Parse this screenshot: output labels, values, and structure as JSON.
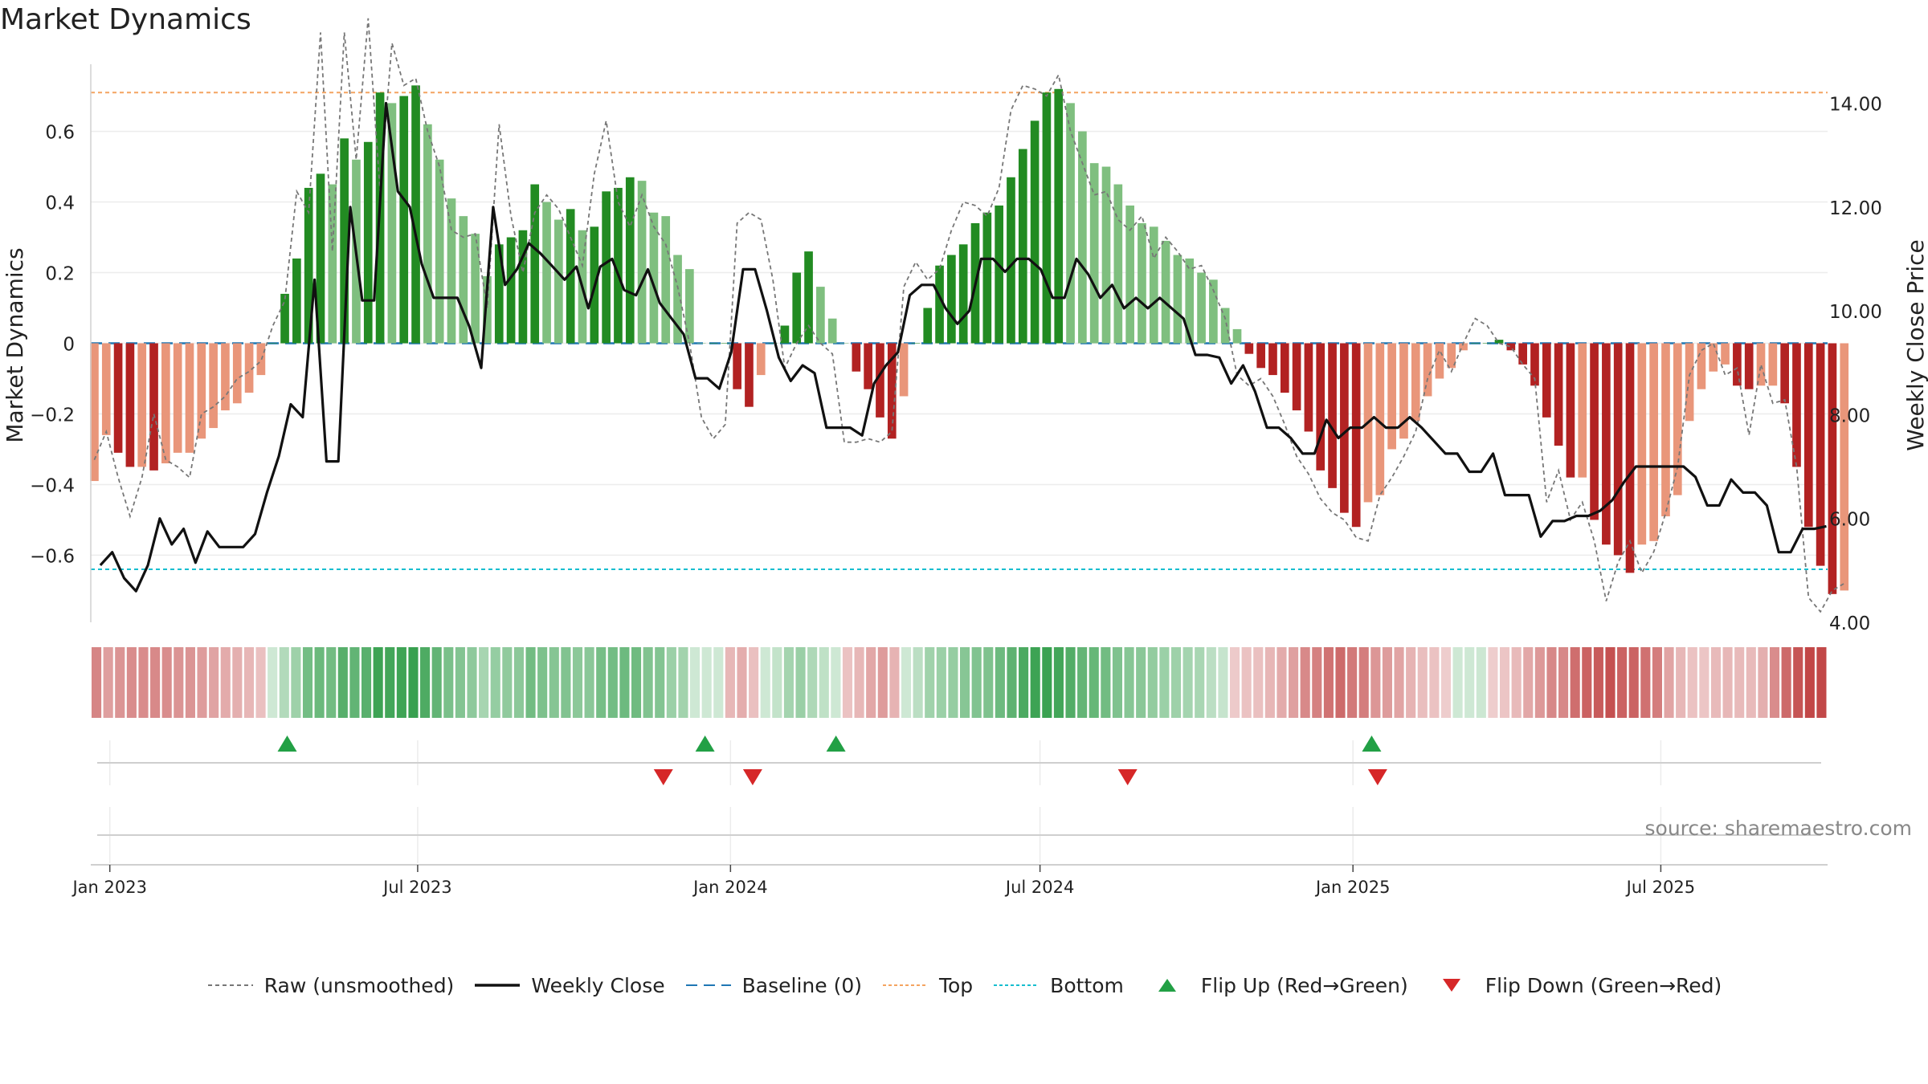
{
  "title": "Market Dynamics",
  "source": "source: sharemaestro.com",
  "colors": {
    "green_dark": "#228b22",
    "green_light": "#7fbf7f",
    "red_dark": "#b22222",
    "red_light": "#e9967a",
    "close_line": "#111111",
    "raw_line": "#777777",
    "baseline": "#1f77b4",
    "top": "#f4a460",
    "bottom": "#17becf",
    "flip_up": "#22a045",
    "flip_down": "#d62728"
  },
  "legend": [
    {
      "label": "Raw (unsmoothed)",
      "kind": "line",
      "color": "#777777",
      "dash": "5,4"
    },
    {
      "label": "Weekly Close",
      "kind": "line",
      "color": "#111111",
      "dash": ""
    },
    {
      "label": "Baseline (0)",
      "kind": "line",
      "color": "#1f77b4",
      "dash": "14,8"
    },
    {
      "label": "Top",
      "kind": "line",
      "color": "#f4a460",
      "dash": "4,3"
    },
    {
      "label": "Bottom",
      "kind": "line",
      "color": "#17becf",
      "dash": "4,3"
    },
    {
      "label": "Flip Up (Red→Green)",
      "kind": "up",
      "color": "#22a045",
      "dash": ""
    },
    {
      "label": "Flip Down (Green→Red)",
      "kind": "down",
      "color": "#d62728",
      "dash": ""
    }
  ],
  "chart_data": {
    "type": "bar",
    "ylabel_left": "Market Dynamics",
    "ylabel_right": "Weekly Close Price",
    "ylim_left": [
      -0.79,
      0.79
    ],
    "ylim_right": [
      4.0,
      14.75
    ],
    "yticks_left": [
      -0.6,
      -0.4,
      -0.2,
      0,
      0.2,
      0.4,
      0.6
    ],
    "ytick_labels_left": [
      "−0.6",
      "−0.4",
      "−0.2",
      "0",
      "0.2",
      "0.4",
      "0.6"
    ],
    "yticks_right": [
      4.0,
      6.0,
      8.0,
      10.0,
      12.0,
      14.0
    ],
    "ytick_labels_right": [
      "4.00",
      "6.00",
      "8.00",
      "10.00",
      "12.00",
      "14.00"
    ],
    "x_start_week": -1.3,
    "x_range_weeks": [
      -1.6,
      144.3
    ],
    "x_ticks": [
      {
        "label": "Jan 2023",
        "week": 0
      },
      {
        "label": "Jul 2023",
        "week": 25.86
      },
      {
        "label": "Jan 2024",
        "week": 52.14
      },
      {
        "label": "Jul 2024",
        "week": 78.14
      },
      {
        "label": "Jan 2025",
        "week": 104.43
      },
      {
        "label": "Jul 2025",
        "week": 130.29
      }
    ],
    "grid": true,
    "top_level": 0.71,
    "bottom_level": -0.64,
    "baseline": 0,
    "legend_position": "bottom",
    "series": [
      {
        "name": "Market Dynamics",
        "values": [
          -0.39,
          -0.26,
          -0.31,
          -0.35,
          -0.35,
          -0.36,
          -0.34,
          -0.31,
          -0.31,
          -0.27,
          -0.24,
          -0.19,
          -0.17,
          -0.14,
          -0.09,
          0.0,
          0.14,
          0.24,
          0.44,
          0.48,
          0.45,
          0.58,
          0.52,
          0.57,
          0.71,
          0.68,
          0.7,
          0.73,
          0.62,
          0.52,
          0.41,
          0.36,
          0.31,
          0.19,
          0.28,
          0.3,
          0.32,
          0.45,
          0.4,
          0.35,
          0.38,
          0.32,
          0.33,
          0.43,
          0.44,
          0.47,
          0.46,
          0.37,
          0.36,
          0.25,
          0.21,
          0.0,
          0.0,
          0.0,
          -0.13,
          -0.18,
          -0.09,
          0.0,
          0.05,
          0.2,
          0.26,
          0.16,
          0.07,
          0.0,
          -0.08,
          -0.13,
          -0.21,
          -0.27,
          -0.15,
          0.0,
          0.1,
          0.22,
          0.25,
          0.28,
          0.34,
          0.37,
          0.39,
          0.47,
          0.55,
          0.63,
          0.71,
          0.72,
          0.68,
          0.6,
          0.51,
          0.5,
          0.45,
          0.39,
          0.34,
          0.33,
          0.29,
          0.25,
          0.24,
          0.2,
          0.18,
          0.1,
          0.04,
          -0.03,
          -0.07,
          -0.09,
          -0.14,
          -0.19,
          -0.25,
          -0.36,
          -0.41,
          -0.48,
          -0.52,
          -0.45,
          -0.43,
          -0.3,
          -0.27,
          -0.22,
          -0.15,
          -0.1,
          -0.07,
          -0.02,
          0.0,
          0.0,
          0.01,
          -0.02,
          -0.06,
          -0.12,
          -0.21,
          -0.29,
          -0.38,
          -0.38,
          -0.5,
          -0.57,
          -0.6,
          -0.65,
          -0.57,
          -0.56,
          -0.49,
          -0.43,
          -0.22,
          -0.13,
          -0.08,
          -0.06,
          -0.12,
          -0.13,
          -0.12,
          -0.12,
          -0.17,
          -0.35,
          -0.52,
          -0.63,
          -0.71,
          -0.7
        ]
      },
      {
        "name": "Raw (unsmoothed)",
        "values": [
          -0.33,
          -0.25,
          -0.38,
          -0.49,
          -0.38,
          -0.2,
          -0.33,
          -0.35,
          -0.38,
          -0.2,
          -0.18,
          -0.15,
          -0.1,
          -0.08,
          -0.05,
          0.05,
          0.12,
          0.43,
          0.37,
          0.88,
          0.26,
          0.88,
          0.52,
          0.92,
          0.43,
          0.85,
          0.73,
          0.75,
          0.6,
          0.5,
          0.32,
          0.3,
          0.31,
          0.1,
          0.62,
          0.36,
          0.2,
          0.37,
          0.42,
          0.38,
          0.3,
          0.22,
          0.48,
          0.63,
          0.4,
          0.33,
          0.42,
          0.33,
          0.28,
          0.16,
          0.0,
          -0.21,
          -0.27,
          -0.23,
          0.34,
          0.37,
          0.35,
          0.18,
          -0.07,
          0.0,
          0.05,
          0.0,
          -0.03,
          -0.28,
          -0.28,
          -0.27,
          -0.28,
          -0.25,
          0.16,
          0.23,
          0.18,
          0.21,
          0.32,
          0.4,
          0.39,
          0.36,
          0.44,
          0.66,
          0.73,
          0.72,
          0.7,
          0.76,
          0.6,
          0.51,
          0.42,
          0.43,
          0.35,
          0.32,
          0.36,
          0.24,
          0.3,
          0.26,
          0.21,
          0.22,
          0.15,
          0.07,
          -0.09,
          -0.12,
          -0.1,
          -0.15,
          -0.23,
          -0.32,
          -0.37,
          -0.44,
          -0.48,
          -0.5,
          -0.55,
          -0.56,
          -0.43,
          -0.38,
          -0.32,
          -0.25,
          -0.1,
          -0.02,
          -0.08,
          0.0,
          0.07,
          0.05,
          0.0,
          -0.01,
          -0.06,
          -0.1,
          -0.45,
          -0.36,
          -0.5,
          -0.45,
          -0.56,
          -0.73,
          -0.62,
          -0.56,
          -0.65,
          -0.59,
          -0.48,
          -0.35,
          -0.09,
          -0.02,
          0.0,
          -0.09,
          -0.07,
          -0.26,
          -0.06,
          -0.17,
          -0.16,
          -0.35,
          -0.72,
          -0.76,
          -0.7,
          -0.68
        ]
      },
      {
        "name": "Weekly Close",
        "values": [
          5.1,
          5.35,
          4.85,
          4.6,
          5.1,
          6.0,
          5.5,
          5.8,
          5.15,
          5.75,
          5.45,
          5.45,
          5.45,
          5.7,
          6.5,
          7.2,
          8.2,
          7.95,
          10.6,
          7.1,
          7.1,
          12.0,
          10.2,
          10.2,
          14.0,
          12.3,
          12.0,
          10.9,
          10.25,
          10.25,
          10.25,
          9.7,
          8.9,
          12.0,
          10.5,
          10.8,
          11.3,
          11.1,
          10.85,
          10.6,
          10.85,
          10.05,
          10.85,
          11.0,
          10.4,
          10.3,
          10.8,
          10.15,
          9.85,
          9.55,
          8.7,
          8.7,
          8.5,
          9.2,
          10.8,
          10.8,
          10.0,
          9.1,
          8.65,
          8.95,
          8.8,
          7.75,
          7.75,
          7.75,
          7.6,
          8.6,
          8.95,
          9.2,
          10.3,
          10.5,
          10.5,
          10.05,
          9.75,
          10.0,
          11.0,
          11.0,
          10.75,
          11.0,
          11.0,
          10.8,
          10.25,
          10.25,
          11.0,
          10.7,
          10.25,
          10.5,
          10.05,
          10.25,
          10.05,
          10.25,
          10.05,
          9.85,
          9.15,
          9.15,
          9.1,
          8.6,
          8.95,
          8.45,
          7.75,
          7.75,
          7.55,
          7.25,
          7.25,
          7.9,
          7.55,
          7.75,
          7.75,
          7.95,
          7.75,
          7.75,
          7.95,
          7.75,
          7.5,
          7.25,
          7.25,
          6.9,
          6.9,
          7.25,
          6.45,
          6.45,
          6.45,
          5.65,
          5.95,
          5.95,
          6.05,
          6.05,
          6.15,
          6.35,
          6.7,
          7.0,
          7.0,
          7.0,
          7.0,
          7.0,
          6.8,
          6.25,
          6.25,
          6.75,
          6.5,
          6.5,
          6.25,
          5.35,
          5.35,
          5.8,
          5.8,
          5.85
        ]
      }
    ],
    "flip_up_weeks": [
      14.9,
      50.0,
      61.0,
      106.0
    ],
    "flip_down_weeks": [
      46.5,
      54.0,
      85.5,
      106.5
    ]
  }
}
